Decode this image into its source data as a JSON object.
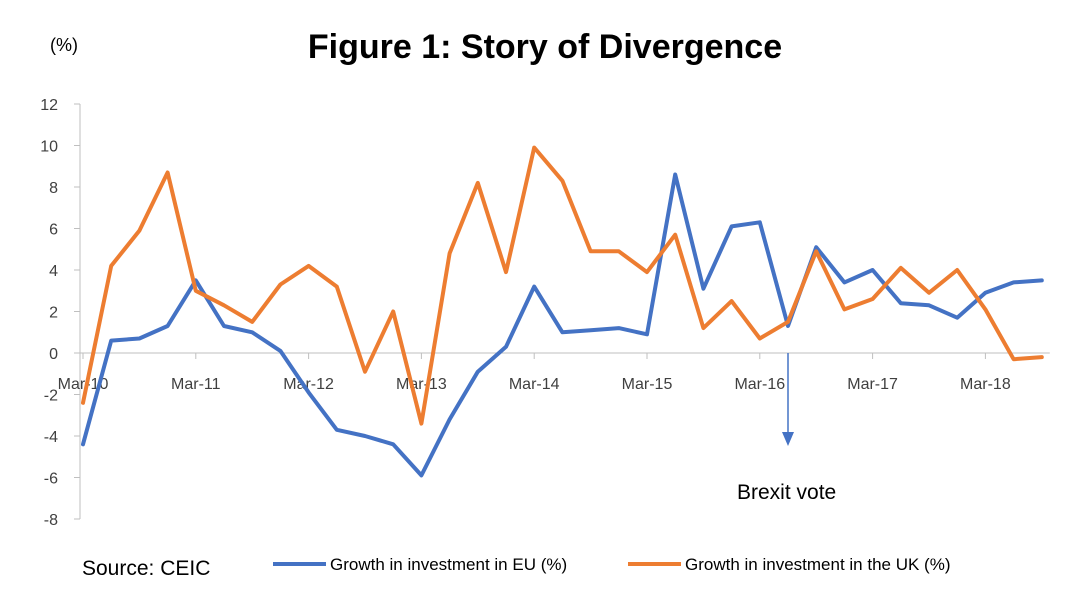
{
  "chart_data": {
    "type": "line",
    "title": "Figure 1: Story of Divergence",
    "unit_label": "(%)",
    "ylim": [
      -8,
      12
    ],
    "y_ticks": [
      -8,
      -6,
      -4,
      -2,
      0,
      2,
      4,
      6,
      8,
      10,
      12
    ],
    "x_tick_labels": [
      "Mar-10",
      "Mar-11",
      "Mar-12",
      "Mar-13",
      "Mar-14",
      "Mar-15",
      "Mar-16",
      "Mar-17",
      "Mar-18"
    ],
    "x_points_per_tick": 4,
    "grid": false,
    "legend_position": "bottom",
    "series": [
      {
        "name": "Growth in investment in EU (%)",
        "color": "#4472C4",
        "values": [
          -4.4,
          0.6,
          0.7,
          1.3,
          3.5,
          1.3,
          1.0,
          0.1,
          -1.9,
          -3.7,
          -4.0,
          -4.4,
          -5.9,
          -3.2,
          -0.9,
          0.3,
          3.2,
          1.0,
          1.1,
          1.2,
          0.9,
          8.6,
          3.1,
          6.1,
          6.3,
          1.3,
          5.1,
          3.4,
          4.0,
          2.4,
          2.3,
          1.7,
          2.9,
          3.4,
          3.5
        ]
      },
      {
        "name": "Growth in investment in the UK (%)",
        "color": "#ED7D31",
        "values": [
          -2.4,
          4.2,
          5.9,
          8.7,
          3.0,
          2.3,
          1.5,
          3.3,
          4.2,
          3.2,
          -0.9,
          2.0,
          -3.4,
          4.8,
          8.2,
          3.9,
          9.9,
          8.3,
          4.9,
          4.9,
          3.9,
          5.7,
          1.2,
          2.5,
          0.7,
          1.5,
          4.9,
          2.1,
          2.6,
          4.1,
          2.9,
          4.0,
          2.1,
          -0.3,
          -0.2
        ]
      }
    ],
    "annotation": {
      "text": "Brexit vote",
      "x_index": 25,
      "color": "#4472C4"
    },
    "source": "Source: CEIC"
  }
}
